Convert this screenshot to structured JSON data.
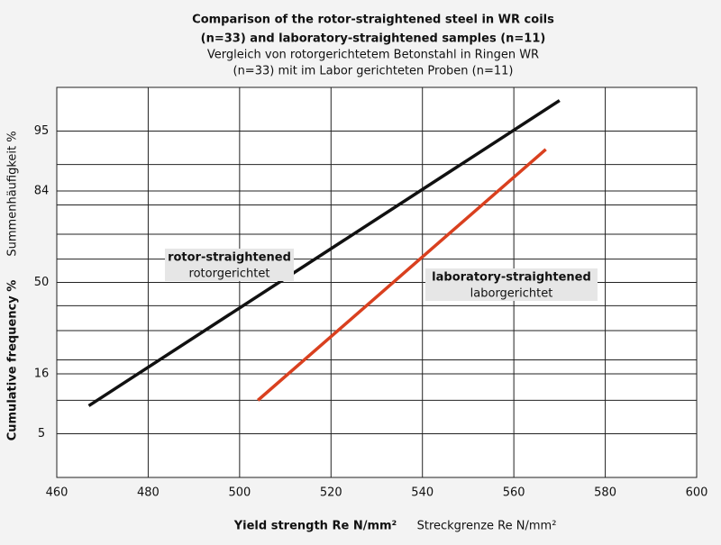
{
  "chart_data": {
    "type": "line",
    "title": [
      "Comparison of the rotor-straightened steel in WR coils",
      "(n=33) and laboratory-straightened samples (n=11)"
    ],
    "subtitle": [
      "Vergleich von rotorgerichtetem Betonstahl in Ringen WR",
      "(n=33) mit im Labor gerichteten Proben (n=11)"
    ],
    "x_label": "Yield strength Re N/mm²",
    "x_label_de": "Streckgrenze Re N/mm²",
    "y_label": "Cumulative frequency %",
    "y_label_de": "Summenhäufigkeit %",
    "y_scale": "probability",
    "xlim": [
      460,
      600
    ],
    "xticks": [
      460,
      480,
      500,
      520,
      540,
      560,
      580,
      600
    ],
    "ylim": [
      1.7,
      98.3
    ],
    "yticks": [
      5,
      16,
      50,
      84,
      95
    ],
    "y_minor_grid": [
      10,
      20,
      30,
      40,
      60,
      70,
      80,
      90
    ],
    "grid": true,
    "series": [
      {
        "name": "rotor-straightened",
        "name_de": "rotorgerichtet",
        "color": "#111111",
        "x": [
          467,
          570
        ],
        "values": [
          9,
          97.6
        ]
      },
      {
        "name": "laboratory-straightened",
        "name_de": "laborgerichtet",
        "color": "#d9401f",
        "x": [
          504,
          567
        ],
        "values": [
          10,
          92.6
        ]
      }
    ]
  }
}
